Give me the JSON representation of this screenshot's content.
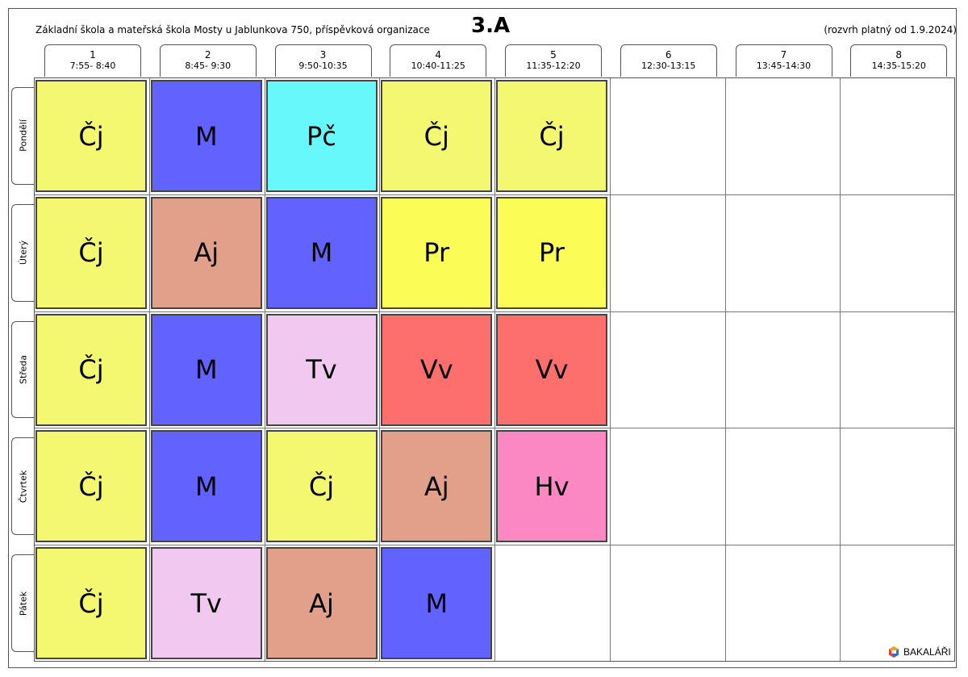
{
  "header": {
    "school": "Základní škola a mateřská škola Mosty u Jablunkova 750, příspěvková organizace",
    "class_name": "3.A",
    "validity": "(rozvrh platný od 1.9.2024)"
  },
  "periods": [
    {
      "number": "1",
      "time": "7:55- 8:40"
    },
    {
      "number": "2",
      "time": "8:45- 9:30"
    },
    {
      "number": "3",
      "time": "9:50-10:35"
    },
    {
      "number": "4",
      "time": "10:40-11:25"
    },
    {
      "number": "5",
      "time": "11:35-12:20"
    },
    {
      "number": "6",
      "time": "12:30-13:15"
    },
    {
      "number": "7",
      "time": "13:45-14:30"
    },
    {
      "number": "8",
      "time": "14:35-15:20"
    }
  ],
  "days": [
    "Pondělí",
    "Úterý",
    "Středa",
    "Čtvrtek",
    "Pátek"
  ],
  "colors": {
    "Čj": "#f4f870",
    "M": "#6262ff",
    "Pč": "#66f8fa",
    "Aj": "#e2a08a",
    "Pr": "#fbfc56",
    "Tv": "#f0c8f0",
    "Vv": "#fd6f6c",
    "Hv": "#fb88c3"
  },
  "timetable": [
    [
      "Čj",
      "M",
      "Pč",
      "Čj",
      "Čj"
    ],
    [
      "Čj",
      "Aj",
      "M",
      "Pr",
      "Pr"
    ],
    [
      "Čj",
      "M",
      "Tv",
      "Vv",
      "Vv"
    ],
    [
      "Čj",
      "M",
      "Čj",
      "Aj",
      "Hv"
    ],
    [
      "Čj",
      "Tv",
      "Aj",
      "M"
    ]
  ],
  "logo": {
    "text": "BAKALÁŘI",
    "icon": "bakalari-logo-icon"
  }
}
